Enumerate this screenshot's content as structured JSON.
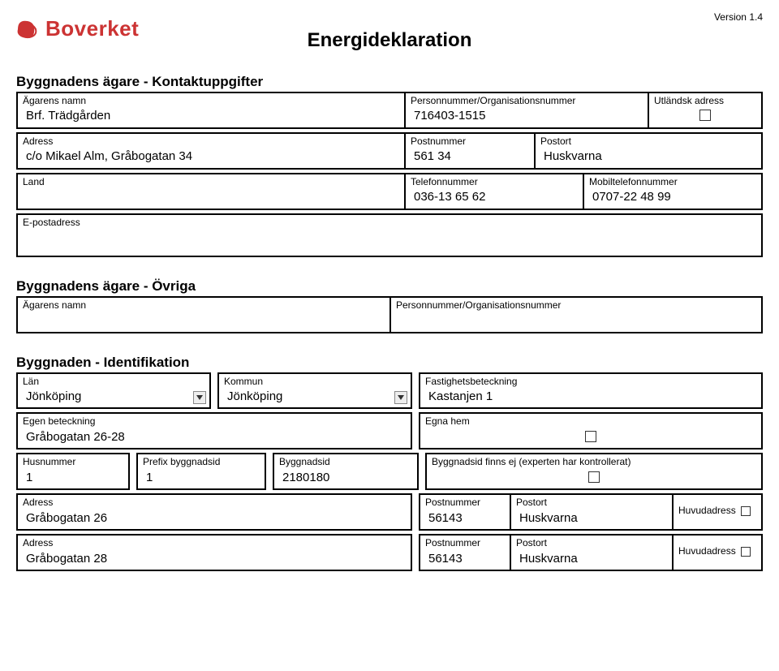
{
  "header": {
    "logo_text": "Boverket",
    "title": "Energideklaration",
    "version": "Version 1.4"
  },
  "owner_contact": {
    "section_title": "Byggnadens ägare - Kontaktuppgifter",
    "name_label": "Ägarens namn",
    "name": "Brf. Trädgården",
    "pnr_label": "Personnummer/Organisationsnummer",
    "pnr": "716403-1515",
    "foreign_label": "Utländsk adress",
    "address_label": "Adress",
    "address": "c/o Mikael Alm, Gråbogatan 34",
    "postnr_label": "Postnummer",
    "postnr": "561 34",
    "postort_label": "Postort",
    "postort": "Huskvarna",
    "land_label": "Land",
    "land": "",
    "tel_label": "Telefonnummer",
    "tel": "036-13 65 62",
    "mobil_label": "Mobiltelefonnummer",
    "mobil": "0707-22 48 99",
    "email_label": "E-postadress",
    "email": ""
  },
  "owner_other": {
    "section_title": "Byggnadens ägare - Övriga",
    "name_label": "Ägarens namn",
    "pnr_label": "Personnummer/Organisationsnummer"
  },
  "ident": {
    "section_title": "Byggnaden - Identifikation",
    "lan_label": "Län",
    "lan": "Jönköping",
    "kommun_label": "Kommun",
    "kommun": "Jönköping",
    "fastighet_label": "Fastighetsbeteckning",
    "fastighet": "Kastanjen 1",
    "egen_label": "Egen beteckning",
    "egen": "Gråbogatan 26-28",
    "egna_hem_label": "Egna hem",
    "husnr_label": "Husnummer",
    "husnr": "1",
    "prefix_label": "Prefix byggnadsid",
    "prefix": "1",
    "byggid_label": "Byggnadsid",
    "byggid": "2180180",
    "byggid_missing_label": "Byggnadsid finns ej (experten har kontrollerat)",
    "addr_label": "Adress",
    "postnr_label": "Postnummer",
    "postort_label": "Postort",
    "huvud_label": "Huvudadress",
    "rows": [
      {
        "addr": "Gråbogatan 26",
        "postnr": "56143",
        "postort": "Huskvarna"
      },
      {
        "addr": "Gråbogatan 28",
        "postnr": "56143",
        "postort": "Huskvarna"
      }
    ]
  },
  "colors": {
    "logo": "#cc3333",
    "border": "#000000",
    "text": "#000000",
    "bg": "#ffffff"
  }
}
